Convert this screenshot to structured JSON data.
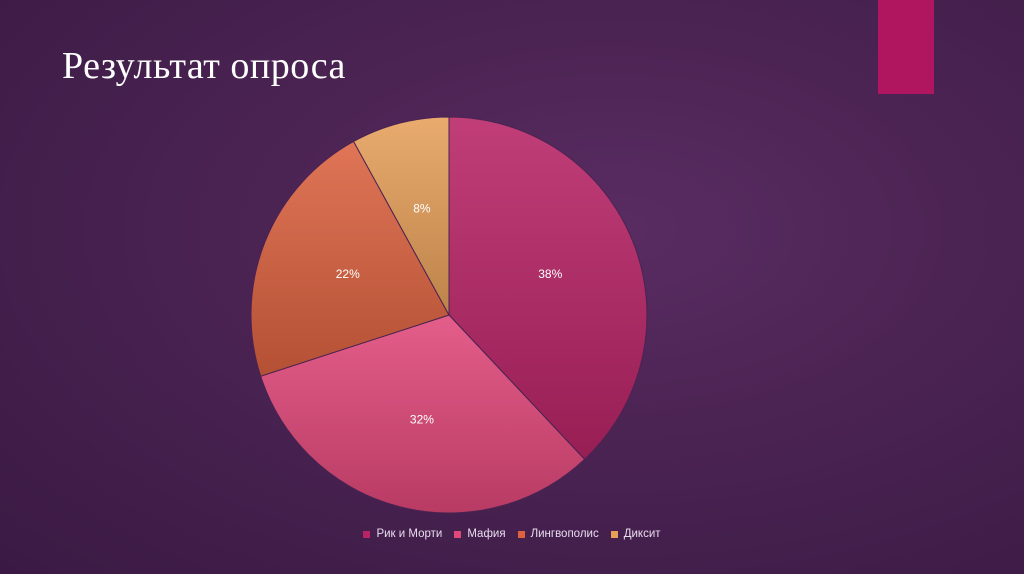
{
  "slide": {
    "title": "Результат опроса",
    "accent_color": "#b0165f"
  },
  "chart_data": {
    "type": "pie",
    "title": "",
    "legend_position": "bottom",
    "start_angle_deg": 0,
    "slices": [
      {
        "name": "Рик и Морти",
        "value": 38,
        "label": "38%",
        "color": "#b82466"
      },
      {
        "name": "Мафия",
        "value": 32,
        "label": "32%",
        "color": "#e0487a"
      },
      {
        "name": "Лингвополис",
        "value": 22,
        "label": "22%",
        "color": "#dc6240"
      },
      {
        "name": "Диксит",
        "value": 8,
        "label": "8%",
        "color": "#e6a05a"
      }
    ]
  }
}
